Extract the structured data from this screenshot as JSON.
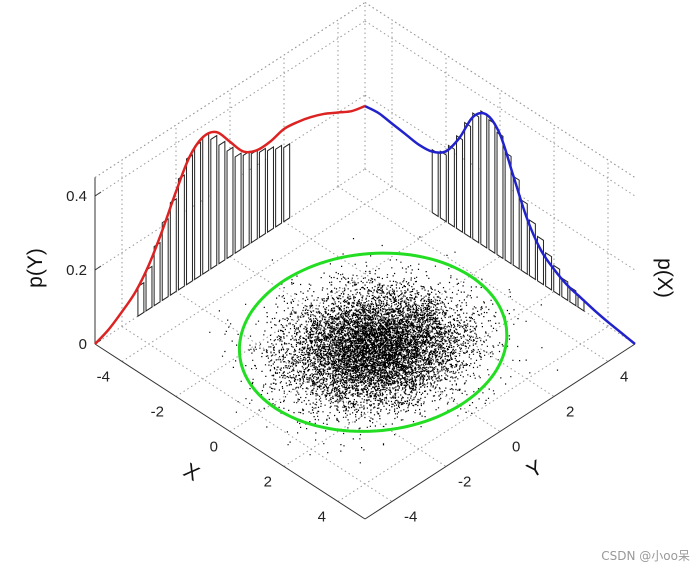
{
  "chart_data": {
    "type": "scatter",
    "title": "",
    "xlabel": "X",
    "ylabel": "Y",
    "zlabel_y_marginal": "p(Y)",
    "zlabel_x_marginal": "p(X)",
    "x_range": [
      -5,
      5
    ],
    "y_range": [
      -5,
      5
    ],
    "z_range": [
      0,
      0.45
    ],
    "x_ticks": [
      "-4",
      "-2",
      "0",
      "2",
      "4"
    ],
    "y_ticks": [
      "-4",
      "-2",
      "0",
      "2",
      "4"
    ],
    "z_ticks": [
      "0",
      "0.2",
      "0.4"
    ],
    "z_tick_values": [
      0,
      0.2,
      0.4
    ],
    "x_tick_values": [
      -4,
      -2,
      0,
      2,
      4
    ],
    "y_tick_values": [
      -4,
      -2,
      0,
      2,
      4
    ],
    "grid": true,
    "scatter": {
      "count": 9000,
      "mean": [
        0.3,
        0.1
      ],
      "std": [
        1.1,
        1.25
      ],
      "color": "#000000"
    },
    "ellipse": {
      "center": [
        0.1,
        0.2
      ],
      "semi_axis_x": 3.4,
      "semi_axis_y": 3.7,
      "rotation_deg": 10,
      "color": "#22dd22"
    },
    "p_Y_curve": {
      "color": "#dd2222",
      "y": [
        -5,
        -4.5,
        -4,
        -3.5,
        -3,
        -2.5,
        -2,
        -1.5,
        -1,
        -0.5,
        0,
        0.5,
        1,
        1.5,
        2,
        2.5,
        3,
        3.5,
        4,
        4.5,
        5
      ],
      "p": [
        0,
        0.015,
        0.04,
        0.07,
        0.12,
        0.19,
        0.27,
        0.34,
        0.37,
        0.36,
        0.31,
        0.26,
        0.24,
        0.24,
        0.25,
        0.245,
        0.235,
        0.22,
        0.2,
        0.18,
        0.17
      ]
    },
    "p_X_curve": {
      "color": "#2222cc",
      "x": [
        -5,
        -4.5,
        -4,
        -3.5,
        -3,
        -2.5,
        -2,
        -1.5,
        -1,
        -0.5,
        0,
        0.5,
        1,
        1.5,
        2,
        2.5,
        3,
        3.5,
        4,
        4.5,
        5
      ],
      "p": [
        0.17,
        0.175,
        0.17,
        0.165,
        0.16,
        0.165,
        0.19,
        0.25,
        0.33,
        0.36,
        0.33,
        0.24,
        0.15,
        0.09,
        0.06,
        0.04,
        0.03,
        0.02,
        0.012,
        0.006,
        0
      ]
    },
    "p_Y_bars": {
      "y": [
        -3.3,
        -3.0,
        -2.7,
        -2.4,
        -2.1,
        -1.8,
        -1.5,
        -1.2,
        -0.9,
        -0.6,
        -0.3,
        0,
        0.3,
        0.6,
        0.9,
        1.2,
        1.5,
        1.8,
        2.1
      ],
      "p": [
        0.08,
        0.11,
        0.16,
        0.21,
        0.25,
        0.3,
        0.34,
        0.36,
        0.37,
        0.35,
        0.32,
        0.29,
        0.26,
        0.25,
        0.24,
        0.23,
        0.22,
        0.21,
        0.2
      ]
    },
    "p_X_bars": {
      "x": [
        -2.4,
        -2.1,
        -1.8,
        -1.5,
        -1.2,
        -0.9,
        -0.6,
        -0.3,
        0,
        0.3,
        0.6,
        0.9,
        1.2,
        1.5,
        1.8,
        2.1,
        2.4,
        2.7,
        3.0
      ],
      "p": [
        0.17,
        0.18,
        0.21,
        0.25,
        0.3,
        0.34,
        0.36,
        0.35,
        0.33,
        0.29,
        0.24,
        0.19,
        0.15,
        0.12,
        0.09,
        0.07,
        0.05,
        0.04,
        0.03
      ]
    }
  },
  "watermark": "CSDN @小oo呆"
}
